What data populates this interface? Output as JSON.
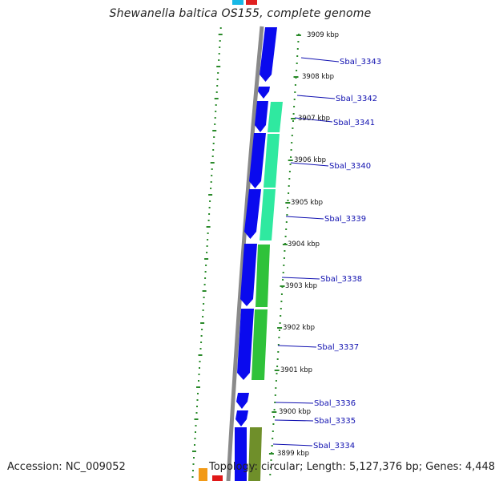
{
  "title": "Shewanella baltica OS155, complete genome",
  "footer": {
    "accession": "Accession: NC_009052",
    "stats": "Topology: circular; Length: 5,127,376 bp; Genes: 4,448"
  },
  "colors": {
    "forward_gene": "#0a0aee",
    "reverse_teal": "#2fe9a0",
    "reverse_green": "#2fc23a",
    "reverse_olive": "#6f8f2a",
    "backbone": "#8a8a8a",
    "gc_ticks": "#2a8a2a",
    "label_text": "#1010b0",
    "top_marker_cyan": "#18b8e6",
    "top_marker_red": "#e02020",
    "bottom_marker_orange": "#f29a16",
    "bottom_marker_red": "#e01818"
  },
  "scale_labels": [
    "3909 kbp",
    "3908 kbp",
    "3907 kbp",
    "3906 kbp",
    "3905 kbp",
    "3904 kbp",
    "3903 kbp",
    "3902 kbp",
    "3901 kbp",
    "3900 kbp",
    "3899 kbp"
  ],
  "genes": [
    "Sbal_3343",
    "Sbal_3342",
    "Sbal_3341",
    "Sbal_3340",
    "Sbal_3339",
    "Sbal_3338",
    "Sbal_3337",
    "Sbal_3336",
    "Sbal_3335",
    "Sbal_3334"
  ]
}
